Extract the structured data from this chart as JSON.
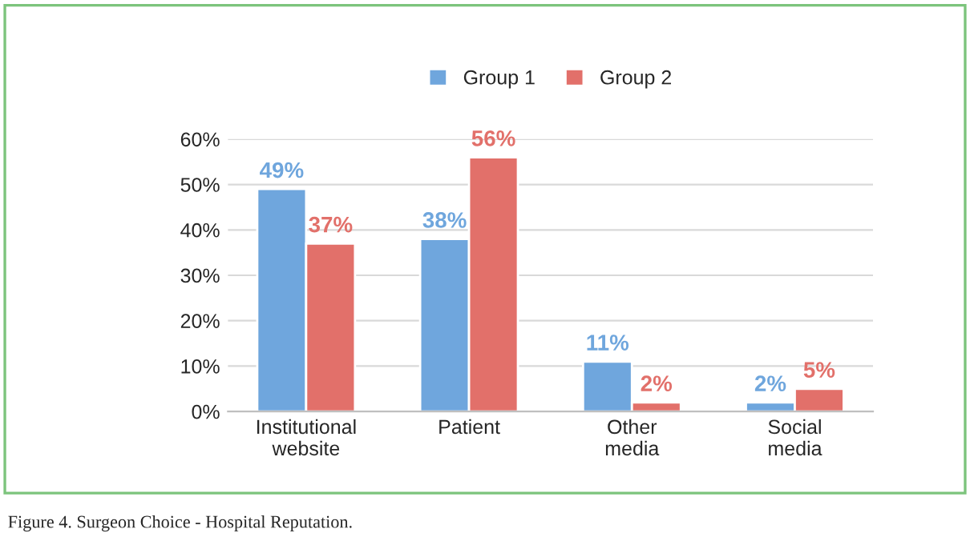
{
  "chart_data": {
    "type": "bar",
    "categories": [
      "Institutional\nwebsite",
      "Patient",
      "Other\nmedia",
      "Social\nmedia"
    ],
    "series": [
      {
        "name": "Group 1",
        "color": "#6fa6dd",
        "values": [
          49,
          38,
          11,
          2
        ],
        "value_labels": [
          "49%",
          "38%",
          "11%",
          "2%"
        ]
      },
      {
        "name": "Group 2",
        "color": "#e2706a",
        "values": [
          37,
          56,
          2,
          5
        ],
        "value_labels": [
          "37%",
          "56%",
          "2%",
          "5%"
        ]
      }
    ],
    "ylim": [
      0,
      60
    ],
    "yticks": [
      {
        "value": 0,
        "label": "0%"
      },
      {
        "value": 10,
        "label": "10%"
      },
      {
        "value": 20,
        "label": "20%"
      },
      {
        "value": 30,
        "label": "30%"
      },
      {
        "value": 40,
        "label": "40%"
      },
      {
        "value": 50,
        "label": "50%"
      },
      {
        "value": 60,
        "label": "60%"
      }
    ],
    "grid": "y",
    "legend": "top",
    "annotations": [
      "Figure 4. Surgeon Choice - Hospital Reputation."
    ]
  }
}
